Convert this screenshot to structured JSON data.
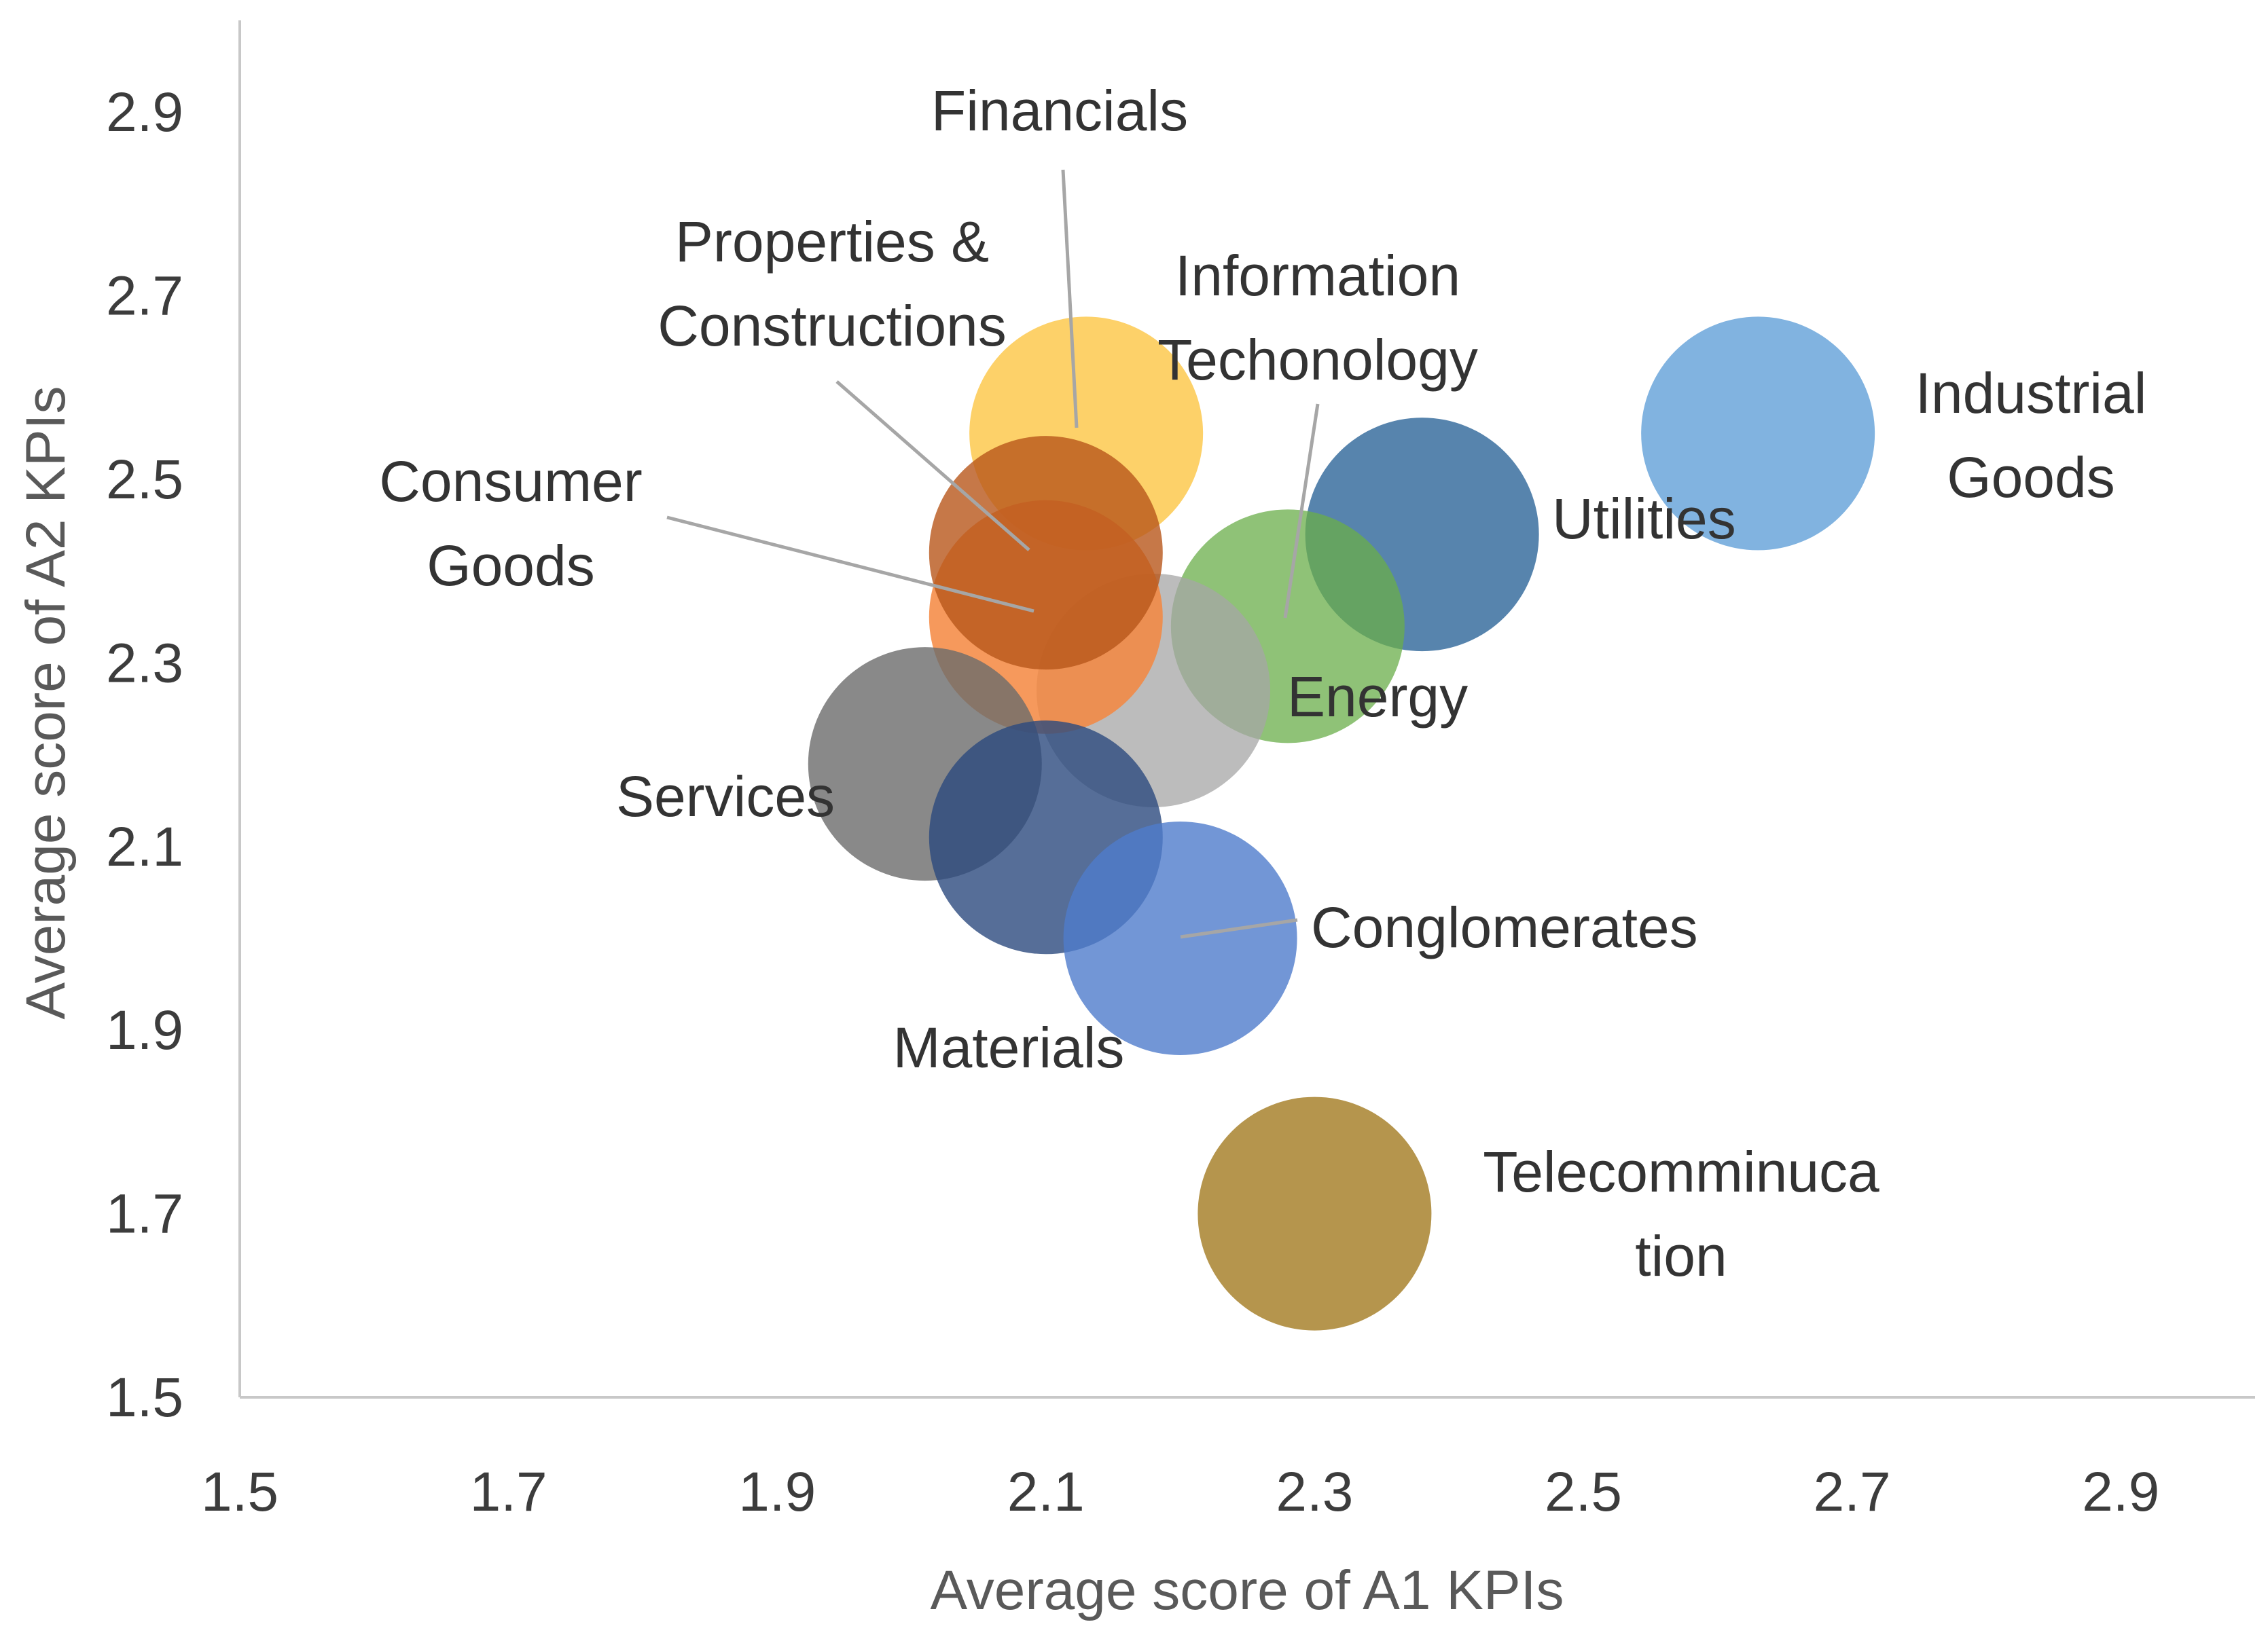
{
  "chart_data": {
    "type": "bubble",
    "title": "",
    "xlabel": "Average score of A1 KPIs",
    "ylabel": "Average score of A2 KPIs",
    "xlim": [
      1.5,
      3.0
    ],
    "ylim": [
      1.5,
      3.0
    ],
    "xticks": [
      "1.5",
      "1.7",
      "1.9",
      "2.1",
      "2.3",
      "2.5",
      "2.7",
      "2.9"
    ],
    "yticks": [
      "1.5",
      "1.7",
      "1.9",
      "2.1",
      "2.3",
      "2.5",
      "2.7",
      "2.9"
    ],
    "grid": false,
    "legend": "none",
    "series": [
      {
        "name": "Financials",
        "lines": [
          "Financials"
        ],
        "x": 2.13,
        "y": 2.55,
        "color": "#fdc94f",
        "opacity": 0.85
      },
      {
        "name": "Industrial Goods",
        "lines": [
          "Industrial",
          "Goods"
        ],
        "x": 2.63,
        "y": 2.55,
        "color": "#6fa8dc",
        "opacity": 0.88
      },
      {
        "name": "Utilities",
        "lines": [
          "Utilities"
        ],
        "x": 2.38,
        "y": 2.44,
        "color": "#3a6e9f",
        "opacity": 0.85
      },
      {
        "name": "Energy",
        "lines": [
          "Energy"
        ],
        "x": 2.28,
        "y": 2.34,
        "color": "#6aad4a",
        "opacity": 0.75
      },
      {
        "name": "Information Techonology",
        "lines": [
          "Information",
          "Techonology"
        ],
        "x": 2.18,
        "y": 2.27,
        "color": "#a6a6a6",
        "opacity": 0.75
      },
      {
        "name": "Consumer Goods",
        "lines": [
          "Consumer",
          "Goods"
        ],
        "x": 2.1,
        "y": 2.35,
        "color": "#f4873f",
        "opacity": 0.85
      },
      {
        "name": "Properties & Constructions",
        "lines": [
          "Properties &",
          "Constructions"
        ],
        "x": 2.1,
        "y": 2.42,
        "color": "#b8561a",
        "opacity": 0.8
      },
      {
        "name": "Services",
        "lines": [
          "Services"
        ],
        "x": 2.01,
        "y": 2.19,
        "color": "#6b6b6b",
        "opacity": 0.8
      },
      {
        "name": "Materials",
        "lines": [
          "Materials"
        ],
        "x": 2.1,
        "y": 2.11,
        "color": "#2c4a7e",
        "opacity": 0.8
      },
      {
        "name": "Conglomerates",
        "lines": [
          "Conglomerates"
        ],
        "x": 2.2,
        "y": 2.0,
        "color": "#4f7ccc",
        "opacity": 0.8
      },
      {
        "name": "Telecomminucation",
        "lines": [
          "Telecomminuca",
          "tion"
        ],
        "x": 2.3,
        "y": 1.7,
        "color": "#a8822e",
        "opacity": 0.85
      }
    ]
  }
}
